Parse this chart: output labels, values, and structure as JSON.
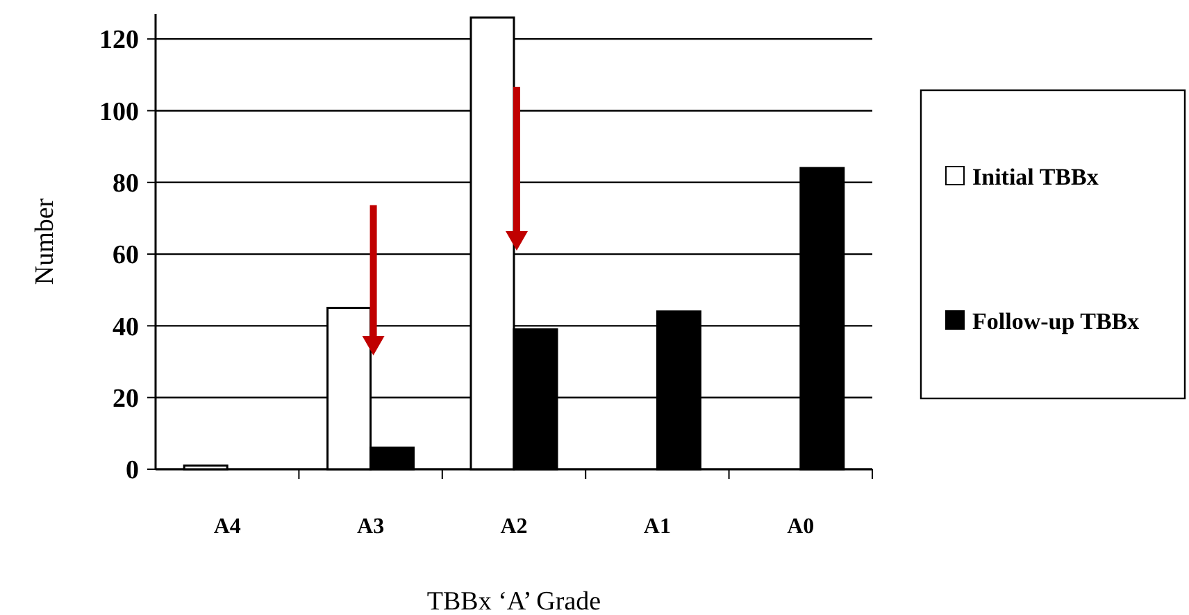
{
  "chart_data": {
    "type": "bar",
    "xlabel": "TBBx ‘A’ Grade",
    "ylabel": "Number",
    "categories": [
      "A4",
      "A3",
      "A2",
      "A1",
      "A0"
    ],
    "series": [
      {
        "name": "Initial TBBx",
        "color": "#ffffff",
        "values": [
          1,
          45,
          126,
          0,
          0
        ]
      },
      {
        "name": "Follow-up TBBx",
        "color": "#000000",
        "values": [
          0,
          6,
          39,
          44,
          84
        ]
      }
    ],
    "ylim": [
      0,
      127
    ],
    "yticks": [
      0,
      20,
      40,
      60,
      80,
      100,
      120
    ],
    "grid": "y",
    "legend": "right"
  }
}
